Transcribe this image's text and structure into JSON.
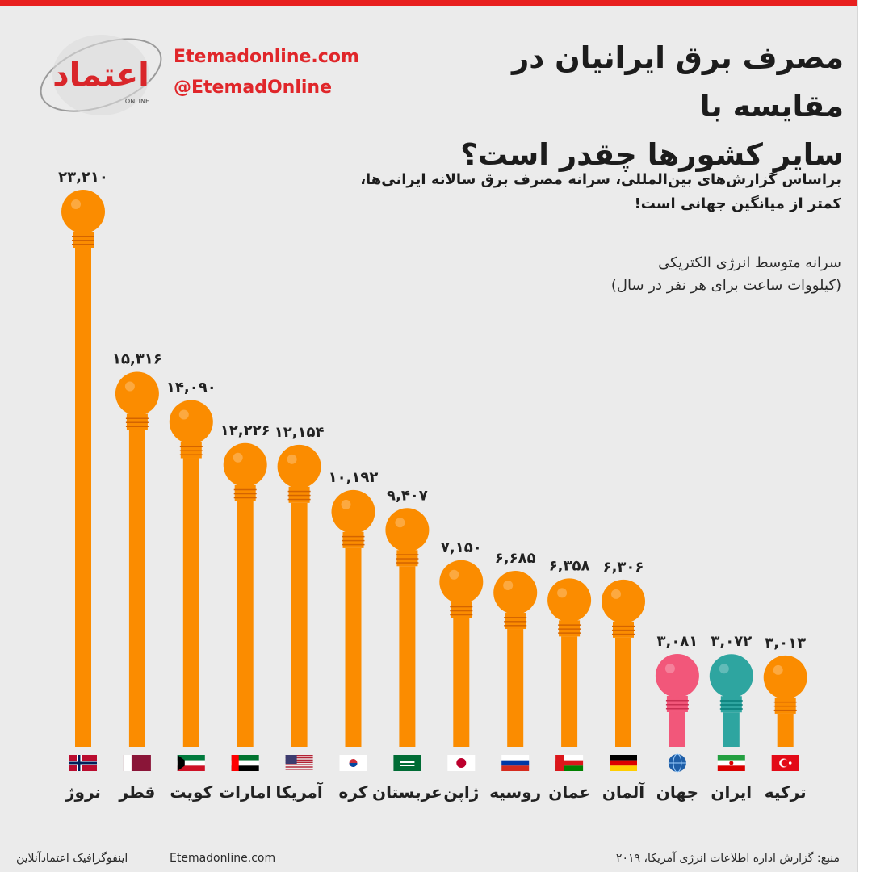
{
  "header": {
    "title_line1": "مصرف برق ایرانیان در مقایسه با",
    "title_line2": "سایر کشورها چقدر است؟",
    "site_url": "Etemadonline.com",
    "site_handle": "@EtemadOnline",
    "logo_word": "اعتماد",
    "logo_sub": "ONLINE"
  },
  "subtitle": {
    "line1": "براساس گزارش‌های بین‌المللی، سرانه مصرف برق سالانه ایرانی‌ها،",
    "line2": "کمتر از میانگین جهانی است!"
  },
  "unit": {
    "line1": "سرانه متوسط انرژی الکتریکی",
    "line2": "(کیلووات ساعت برای هر نفر در سال)"
  },
  "footer": {
    "left": "اینفوگرافیک اعتمادآنلاین",
    "center": "Etemadonline.com",
    "right": "منبع: گزارش اداره اطلاعات انرژی آمریکا، ۲۰۱۹"
  },
  "colors": {
    "default_bulb": "#fb8c00",
    "world_bulb": "#f2577a",
    "iran_bulb": "#2ea5a0",
    "accent": "#e0262a"
  },
  "chart_data": {
    "type": "bar",
    "categories": [
      "نروژ",
      "قطر",
      "کویت",
      "امارات",
      "آمریکا",
      "کره",
      "عربستان",
      "ژاپن",
      "روسیه",
      "عمان",
      "آلمان",
      "جهان",
      "ایران",
      "ترکیه"
    ],
    "values": [
      23210,
      15316,
      14090,
      12226,
      12154,
      10192,
      9407,
      7150,
      6685,
      6358,
      6306,
      3081,
      3072,
      3013
    ],
    "value_labels": [
      "۲۳,۲۱۰",
      "۱۵,۳۱۶",
      "۱۴,۰۹۰",
      "۱۲,۲۲۶",
      "۱۲,۱۵۴",
      "۱۰,۱۹۲",
      "۹,۴۰۷",
      "۷,۱۵۰",
      "۶,۶۸۵",
      "۶,۳۵۸",
      "۶,۳۰۶",
      "۳,۰۸۱",
      "۳,۰۷۲",
      "۳,۰۱۳"
    ],
    "flags": [
      "norway-flag-icon",
      "qatar-flag-icon",
      "kuwait-flag-icon",
      "uae-flag-icon",
      "usa-flag-icon",
      "korea-flag-icon",
      "saudi-flag-icon",
      "japan-flag-icon",
      "russia-flag-icon",
      "oman-flag-icon",
      "germany-flag-icon",
      "globe-icon",
      "iran-flag-icon",
      "turkey-flag-icon"
    ],
    "highlight": {
      "جهان": "world",
      "ایران": "iran"
    },
    "ylabel": "سرانه متوسط انرژی الکتریکی (کیلووات ساعت برای هر نفر در سال)",
    "grid": false,
    "legend": "none"
  }
}
